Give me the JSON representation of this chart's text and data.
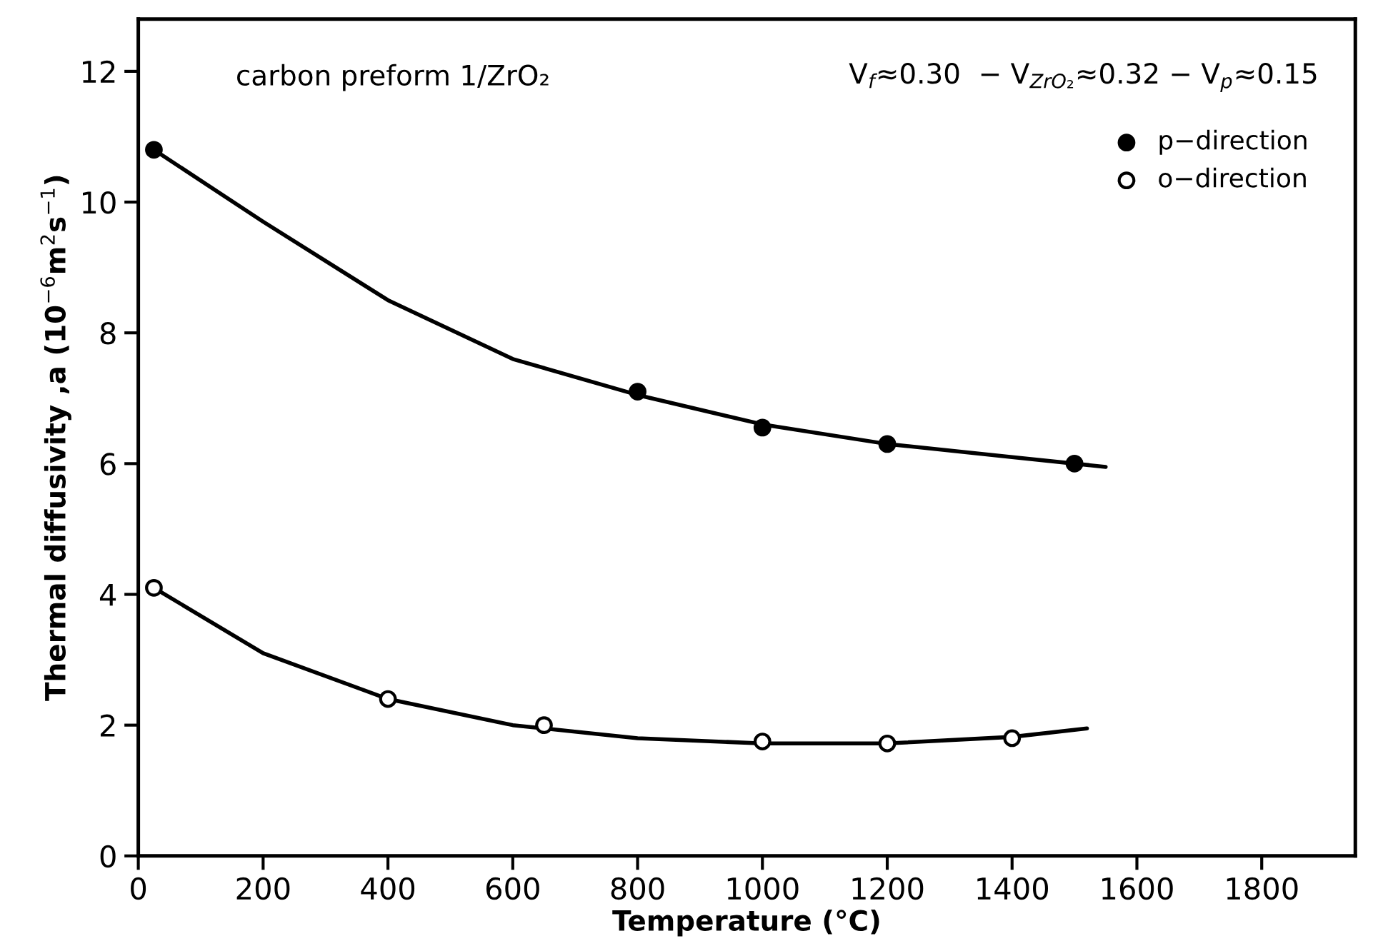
{
  "chart_data": {
    "type": "scatter",
    "xlabel": "Temperature (°C)",
    "ylabel": "Thermal diffusivity ,a (10$^{−6}$m$^{2}$s$^{−1}$)",
    "annotations": [
      "carbon preform 1/ZrO₂",
      "V$_{f}$≈0.30  − V$_{ZrO₂}$≈0.32 − V$_{p}$≈0.15"
    ],
    "xlim": [
      0,
      1950
    ],
    "ylim": [
      0,
      12.8
    ],
    "xticks": [
      0,
      200,
      400,
      600,
      800,
      1000,
      1200,
      1400,
      1600,
      1800
    ],
    "yticks": [
      0,
      2,
      4,
      6,
      8,
      10,
      12
    ],
    "grid": false,
    "legend": "top right",
    "series": [
      {
        "name": "p−direction",
        "marker": "circle",
        "color": "#000000",
        "x": [
          25,
          800,
          1000,
          1200,
          1500
        ],
        "values": [
          10.8,
          7.1,
          6.55,
          6.3,
          6.0
        ]
      },
      {
        "name": "o−direction",
        "marker": "circle",
        "color": "#000000",
        "x": [
          25,
          400,
          650,
          1000,
          1200,
          1400
        ],
        "values": [
          4.1,
          2.4,
          2.0,
          1.75,
          1.72,
          1.8
        ]
      },
      {
        "type": "line",
        "color": "#000000",
        "x": [
          25,
          200,
          400,
          600,
          800,
          1000,
          1200,
          1400,
          1550
        ],
        "values": [
          10.8,
          9.7,
          8.5,
          7.6,
          7.05,
          6.6,
          6.3,
          6.1,
          5.95
        ]
      },
      {
        "type": "line",
        "color": "#000000",
        "x": [
          25,
          200,
          400,
          600,
          800,
          1000,
          1200,
          1400,
          1520
        ],
        "values": [
          4.1,
          3.1,
          2.4,
          2.0,
          1.8,
          1.72,
          1.72,
          1.82,
          1.95
        ]
      }
    ]
  }
}
